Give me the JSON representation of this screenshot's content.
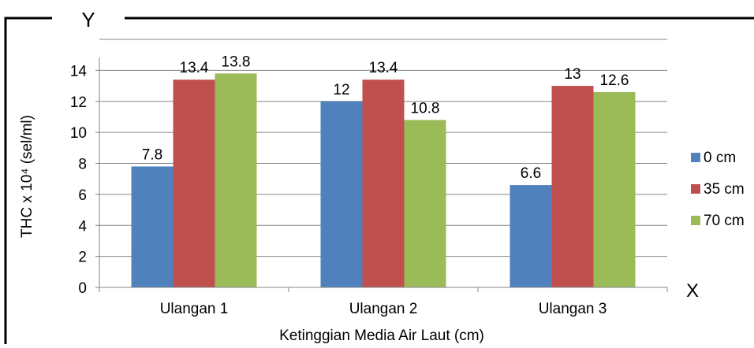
{
  "corner_labels": {
    "y": "Y",
    "x": "X"
  },
  "chart_data": {
    "type": "bar",
    "categories": [
      "Ulangan 1",
      "Ulangan 2",
      "Ulangan 3"
    ],
    "series": [
      {
        "name": "0 cm",
        "color": "#4F81BD",
        "values": [
          7.8,
          12,
          6.6
        ],
        "labels": [
          "7.8",
          "12",
          "6.6"
        ]
      },
      {
        "name": "35 cm",
        "color": "#C0504D",
        "values": [
          13.4,
          13.4,
          13
        ],
        "labels": [
          "13.4",
          "13.4",
          "13"
        ]
      },
      {
        "name": "70 cm",
        "color": "#9BBB59",
        "values": [
          13.8,
          10.8,
          12.6
        ],
        "labels": [
          "13.8",
          "10.8",
          "12.6"
        ]
      }
    ],
    "xlabel": "Ketinggian Media Air Laut (cm)",
    "ylabel": "THC x 10⁴ (sel/ml)",
    "ylim": [
      0,
      16
    ],
    "yticks": [
      0,
      2,
      4,
      6,
      8,
      10,
      12,
      14
    ],
    "grid": true,
    "legend_position": "right"
  }
}
